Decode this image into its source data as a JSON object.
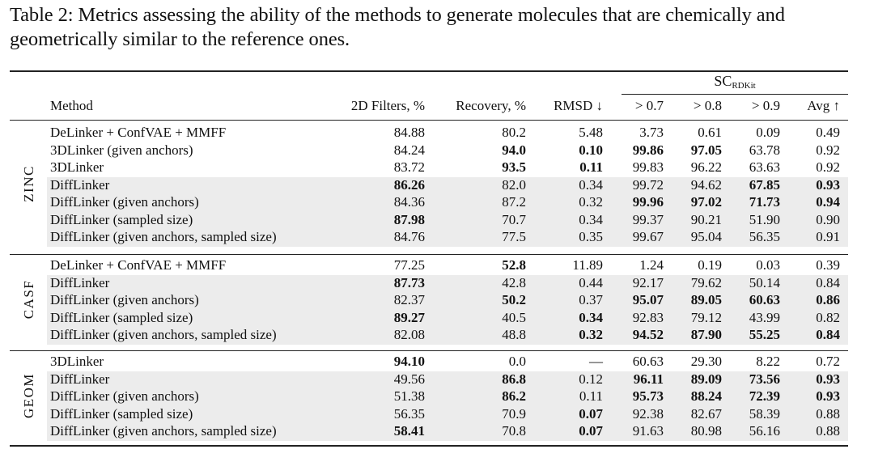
{
  "caption": "Table 2: Metrics assessing the ability of the methods to generate molecules that are chemically and geometrically similar to the reference ones.",
  "header": {
    "method": "Method",
    "filters": "2D Filters, %",
    "recovery": "Recovery, %",
    "rmsd": "RMSD ↓",
    "sc_group": "SC",
    "sc_sub": "RDKit",
    "gt07": "> 0.7",
    "gt08": "> 0.8",
    "gt09": "> 0.9",
    "avg": "Avg ↑"
  },
  "groups": [
    {
      "label": "ZINC",
      "rows": [
        {
          "method": "DeLinker + ConfVAE + MMFF",
          "shaded": false,
          "v": [
            "84.88",
            "80.2",
            "5.48",
            "3.73",
            "0.61",
            "0.09",
            "0.49"
          ],
          "bold": [
            false,
            false,
            false,
            false,
            false,
            false,
            false
          ]
        },
        {
          "method": "3DLinker (given anchors)",
          "shaded": false,
          "v": [
            "84.24",
            "94.0",
            "0.10",
            "99.86",
            "97.05",
            "63.78",
            "0.92"
          ],
          "bold": [
            false,
            true,
            true,
            true,
            true,
            false,
            false
          ]
        },
        {
          "method": "3DLinker",
          "shaded": false,
          "v": [
            "83.72",
            "93.5",
            "0.11",
            "99.83",
            "96.22",
            "63.63",
            "0.92"
          ],
          "bold": [
            false,
            true,
            true,
            false,
            false,
            false,
            false
          ]
        },
        {
          "method": "DiffLinker",
          "shaded": true,
          "v": [
            "86.26",
            "82.0",
            "0.34",
            "99.72",
            "94.62",
            "67.85",
            "0.93"
          ],
          "bold": [
            true,
            false,
            false,
            false,
            false,
            true,
            true
          ]
        },
        {
          "method": "DiffLinker (given anchors)",
          "shaded": true,
          "v": [
            "84.36",
            "87.2",
            "0.32",
            "99.96",
            "97.02",
            "71.73",
            "0.94"
          ],
          "bold": [
            false,
            false,
            false,
            true,
            true,
            true,
            true
          ]
        },
        {
          "method": "DiffLinker (sampled size)",
          "shaded": true,
          "v": [
            "87.98",
            "70.7",
            "0.34",
            "99.37",
            "90.21",
            "51.90",
            "0.90"
          ],
          "bold": [
            true,
            false,
            false,
            false,
            false,
            false,
            false
          ]
        },
        {
          "method": "DiffLinker (given anchors, sampled size)",
          "shaded": true,
          "v": [
            "84.76",
            "77.5",
            "0.35",
            "99.67",
            "95.04",
            "56.35",
            "0.91"
          ],
          "bold": [
            false,
            false,
            false,
            false,
            false,
            false,
            false
          ]
        }
      ]
    },
    {
      "label": "CASF",
      "rows": [
        {
          "method": "DeLinker + ConfVAE + MMFF",
          "shaded": false,
          "v": [
            "77.25",
            "52.8",
            "11.89",
            "1.24",
            "0.19",
            "0.03",
            "0.39"
          ],
          "bold": [
            false,
            true,
            false,
            false,
            false,
            false,
            false
          ]
        },
        {
          "method": "DiffLinker",
          "shaded": true,
          "v": [
            "87.73",
            "42.8",
            "0.44",
            "92.17",
            "79.62",
            "50.14",
            "0.84"
          ],
          "bold": [
            true,
            false,
            false,
            false,
            false,
            false,
            false
          ]
        },
        {
          "method": "DiffLinker (given anchors)",
          "shaded": true,
          "v": [
            "82.37",
            "50.2",
            "0.37",
            "95.07",
            "89.05",
            "60.63",
            "0.86"
          ],
          "bold": [
            false,
            true,
            false,
            true,
            true,
            true,
            true
          ]
        },
        {
          "method": "DiffLinker (sampled size)",
          "shaded": true,
          "v": [
            "89.27",
            "40.5",
            "0.34",
            "92.83",
            "79.12",
            "43.99",
            "0.82"
          ],
          "bold": [
            true,
            false,
            true,
            false,
            false,
            false,
            false
          ]
        },
        {
          "method": "DiffLinker (given anchors, sampled size)",
          "shaded": true,
          "v": [
            "82.08",
            "48.8",
            "0.32",
            "94.52",
            "87.90",
            "55.25",
            "0.84"
          ],
          "bold": [
            false,
            false,
            true,
            true,
            true,
            true,
            true
          ]
        }
      ]
    },
    {
      "label": "GEOM",
      "rows": [
        {
          "method": "3DLinker",
          "shaded": false,
          "v": [
            "94.10",
            "0.0",
            "—",
            "60.63",
            "29.30",
            "8.22",
            "0.72"
          ],
          "bold": [
            true,
            false,
            false,
            false,
            false,
            false,
            false
          ]
        },
        {
          "method": "DiffLinker",
          "shaded": true,
          "v": [
            "49.56",
            "86.8",
            "0.12",
            "96.11",
            "89.09",
            "73.56",
            "0.93"
          ],
          "bold": [
            false,
            true,
            false,
            true,
            true,
            true,
            true
          ]
        },
        {
          "method": "DiffLinker (given anchors)",
          "shaded": true,
          "v": [
            "51.38",
            "86.2",
            "0.11",
            "95.73",
            "88.24",
            "72.39",
            "0.93"
          ],
          "bold": [
            false,
            true,
            false,
            true,
            true,
            true,
            true
          ]
        },
        {
          "method": "DiffLinker (sampled size)",
          "shaded": true,
          "v": [
            "56.35",
            "70.9",
            "0.07",
            "92.38",
            "82.67",
            "58.39",
            "0.88"
          ],
          "bold": [
            false,
            false,
            true,
            false,
            false,
            false,
            false
          ]
        },
        {
          "method": "DiffLinker (given anchors, sampled size)",
          "shaded": true,
          "v": [
            "58.41",
            "70.8",
            "0.07",
            "91.63",
            "80.98",
            "56.16",
            "0.88"
          ],
          "bold": [
            true,
            false,
            true,
            false,
            false,
            false,
            false
          ]
        }
      ]
    }
  ]
}
